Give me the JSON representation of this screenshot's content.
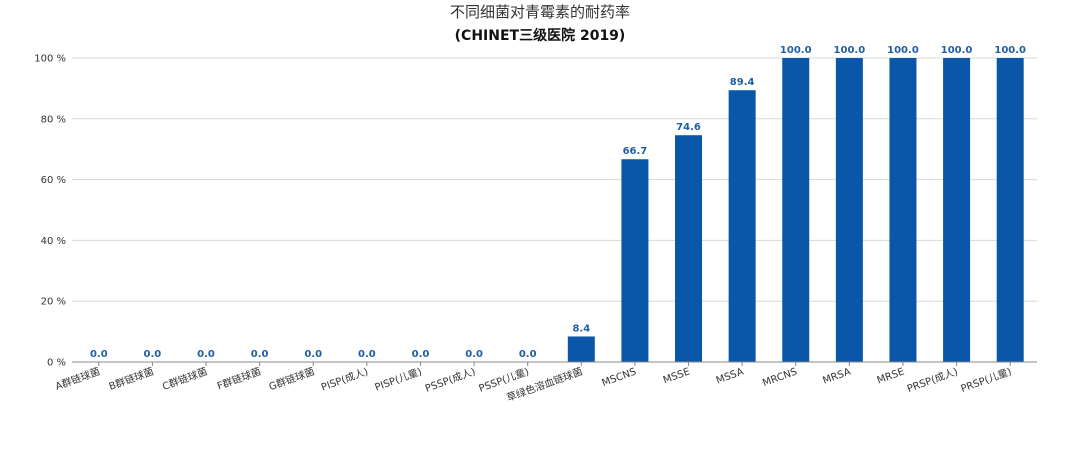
{
  "chart_data": {
    "type": "bar",
    "title": "不同细菌对青霉素的耐药率",
    "subtitle": "(CHINET三级医院 2019)",
    "categories": [
      "A群链球菌",
      "B群链球菌",
      "C群链球菌",
      "F群链球菌",
      "G群链球菌",
      "PISP(成人)",
      "PISP(儿童)",
      "PSSP(成人)",
      "PSSP(儿童)",
      "草绿色溶血链球菌",
      "MSCNS",
      "MSSE",
      "MSSA",
      "MRCNS",
      "MRSA",
      "MRSE",
      "PRSP(成人)",
      "PRSP(儿童)"
    ],
    "values": [
      0.0,
      0.0,
      0.0,
      0.0,
      0.0,
      0.0,
      0.0,
      0.0,
      0.0,
      8.4,
      66.7,
      74.6,
      89.4,
      100.0,
      100.0,
      100.0,
      100.0,
      100.0
    ],
    "ylim": [
      0,
      100
    ],
    "yticks": [
      "0 %",
      "20 %",
      "40 %",
      "60 %",
      "80 %",
      "100 %"
    ],
    "ytick_values": [
      0,
      20,
      40,
      60,
      80,
      100
    ],
    "grid": true,
    "bar_color": "#0a56a8",
    "label_color": "#1f5fa8"
  }
}
